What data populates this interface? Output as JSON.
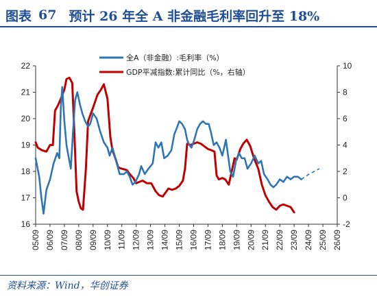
{
  "header": {
    "label": "图表",
    "number": "67",
    "text": "预计 26 年全 A 非金融毛利率回升至 18%"
  },
  "source": "资料来源：Wind，华创证券",
  "chart_data": {
    "type": "line",
    "title": "",
    "xlabel": "",
    "ylabel": "",
    "x_ticks": [
      "05/09",
      "06/09",
      "07/09",
      "08/09",
      "09/09",
      "10/09",
      "11/09",
      "12/09",
      "13/09",
      "14/09",
      "15/09",
      "16/09",
      "17/09",
      "18/09",
      "19/09",
      "20/09",
      "21/09",
      "22/09",
      "23/09",
      "24/09",
      "25/09",
      "26/09"
    ],
    "y_left": {
      "min": 16,
      "max": 22,
      "ticks": [
        "16",
        "17",
        "18",
        "19",
        "20",
        "21",
        "22"
      ]
    },
    "y_right": {
      "min": -2,
      "max": 10,
      "ticks": [
        "-2",
        "0",
        "2",
        "4",
        "6",
        "8",
        "10"
      ]
    },
    "legend_position": "top",
    "grid": false,
    "series": [
      {
        "name": "全A（非金融）:毛利率（%）",
        "axis": "left",
        "color": "#2e75b6",
        "points": [
          [
            2005.75,
            18.5
          ],
          [
            2006.0,
            17.8
          ],
          [
            2006.15,
            17.0
          ],
          [
            2006.3,
            16.4
          ],
          [
            2006.5,
            17.3
          ],
          [
            2006.75,
            17.7
          ],
          [
            2007.0,
            18.3
          ],
          [
            2007.25,
            18.7
          ],
          [
            2007.4,
            18.5
          ],
          [
            2007.5,
            20.4
          ],
          [
            2007.6,
            21.2
          ],
          [
            2007.75,
            19.9
          ],
          [
            2007.9,
            19.0
          ],
          [
            2008.0,
            18.7
          ],
          [
            2008.2,
            18.1
          ],
          [
            2008.35,
            19.5
          ],
          [
            2008.5,
            20.7
          ],
          [
            2008.65,
            21.0
          ],
          [
            2008.85,
            20.5
          ],
          [
            2009.0,
            20.2
          ],
          [
            2009.2,
            19.9
          ],
          [
            2009.4,
            19.7
          ],
          [
            2009.55,
            19.8
          ],
          [
            2009.75,
            20.2
          ],
          [
            2010.0,
            20.0
          ],
          [
            2010.25,
            19.5
          ],
          [
            2010.5,
            19.1
          ],
          [
            2010.75,
            18.9
          ],
          [
            2010.9,
            18.6
          ],
          [
            2011.1,
            18.9
          ],
          [
            2011.3,
            18.5
          ],
          [
            2011.6,
            17.9
          ],
          [
            2011.9,
            17.9
          ],
          [
            2012.1,
            18.0
          ],
          [
            2012.3,
            17.8
          ],
          [
            2012.5,
            17.5
          ],
          [
            2012.7,
            17.6
          ],
          [
            2012.95,
            17.9
          ],
          [
            2013.1,
            18.2
          ],
          [
            2013.35,
            17.9
          ],
          [
            2013.6,
            18.1
          ],
          [
            2013.9,
            18.3
          ],
          [
            2014.1,
            19.1
          ],
          [
            2014.3,
            18.9
          ],
          [
            2014.5,
            19.1
          ],
          [
            2014.7,
            18.5
          ],
          [
            2014.95,
            18.6
          ],
          [
            2015.2,
            18.8
          ],
          [
            2015.4,
            19.4
          ],
          [
            2015.55,
            19.6
          ],
          [
            2015.75,
            19.9
          ],
          [
            2015.95,
            19.8
          ],
          [
            2016.15,
            19.6
          ],
          [
            2016.3,
            19.2
          ],
          [
            2016.45,
            19.0
          ],
          [
            2016.6,
            18.9
          ],
          [
            2016.8,
            19.2
          ],
          [
            2017.0,
            19.6
          ],
          [
            2017.2,
            19.8
          ],
          [
            2017.4,
            19.9
          ],
          [
            2017.6,
            19.8
          ],
          [
            2017.8,
            19.8
          ],
          [
            2017.95,
            19.5
          ],
          [
            2018.15,
            19.0
          ],
          [
            2018.35,
            19.1
          ],
          [
            2018.55,
            18.9
          ],
          [
            2018.75,
            18.6
          ],
          [
            2019.0,
            19.2
          ],
          [
            2019.3,
            18.0
          ],
          [
            2019.5,
            17.8
          ],
          [
            2019.7,
            18.4
          ],
          [
            2019.9,
            18.7
          ],
          [
            2020.1,
            18.5
          ],
          [
            2020.3,
            18.5
          ],
          [
            2020.5,
            18.1
          ],
          [
            2020.75,
            18.3
          ],
          [
            2021.0,
            18.6
          ],
          [
            2021.25,
            18.3
          ],
          [
            2021.45,
            18.4
          ],
          [
            2021.65,
            17.9
          ],
          [
            2021.9,
            17.7
          ],
          [
            2022.1,
            17.5
          ],
          [
            2022.3,
            17.4
          ],
          [
            2022.5,
            17.5
          ],
          [
            2022.75,
            17.7
          ],
          [
            2023.0,
            17.6
          ],
          [
            2023.25,
            17.8
          ],
          [
            2023.5,
            17.7
          ],
          [
            2023.75,
            17.8
          ],
          [
            2024.0,
            17.8
          ],
          [
            2024.25,
            17.7
          ]
        ]
      },
      {
        "name": "GDP平减指数:累计同比（%，右轴）",
        "axis": "right",
        "color": "#c00000",
        "points": [
          [
            2005.75,
            4.2
          ],
          [
            2005.9,
            3.8
          ],
          [
            2006.2,
            3.6
          ],
          [
            2006.5,
            3.5
          ],
          [
            2006.75,
            4.0
          ],
          [
            2006.95,
            4.0
          ],
          [
            2007.1,
            6.6
          ],
          [
            2007.3,
            7.0
          ],
          [
            2007.5,
            7.5
          ],
          [
            2007.75,
            8.2
          ],
          [
            2007.9,
            9.0
          ],
          [
            2008.1,
            9.1
          ],
          [
            2008.3,
            8.7
          ],
          [
            2008.45,
            4.8
          ],
          [
            2008.6,
            0.5
          ],
          [
            2008.75,
            -0.3
          ],
          [
            2008.9,
            -0.8
          ],
          [
            2009.05,
            -0.9
          ],
          [
            2009.25,
            2.2
          ],
          [
            2009.4,
            5.8
          ],
          [
            2009.6,
            6.4
          ],
          [
            2009.8,
            7.0
          ],
          [
            2010.05,
            7.8
          ],
          [
            2010.3,
            8.2
          ],
          [
            2010.5,
            8.6
          ],
          [
            2010.75,
            7.5
          ],
          [
            2010.95,
            4.6
          ],
          [
            2011.1,
            3.6
          ],
          [
            2011.3,
            3.0
          ],
          [
            2011.5,
            2.3
          ],
          [
            2011.75,
            2.2
          ],
          [
            2012.1,
            2.1
          ],
          [
            2012.3,
            1.8
          ],
          [
            2012.55,
            1.5
          ],
          [
            2012.75,
            1.1
          ],
          [
            2012.95,
            1.2
          ],
          [
            2013.2,
            1.3
          ],
          [
            2013.5,
            1.1
          ],
          [
            2013.8,
            1.1
          ],
          [
            2014.1,
            0.5
          ],
          [
            2014.35,
            0.2
          ],
          [
            2014.6,
            0.1
          ],
          [
            2014.8,
            0.4
          ],
          [
            2015.0,
            0.7
          ],
          [
            2015.25,
            0.6
          ],
          [
            2015.5,
            0.7
          ],
          [
            2015.75,
            0.9
          ],
          [
            2016.0,
            1.3
          ],
          [
            2016.15,
            2.2
          ],
          [
            2016.3,
            4.1
          ],
          [
            2016.5,
            4.0
          ],
          [
            2016.75,
            4.1
          ],
          [
            2017.0,
            4.2
          ],
          [
            2017.25,
            4.1
          ],
          [
            2017.5,
            3.9
          ],
          [
            2017.75,
            3.7
          ],
          [
            2018.0,
            3.6
          ],
          [
            2018.2,
            3.5
          ],
          [
            2018.35,
            1.7
          ],
          [
            2018.5,
            1.4
          ],
          [
            2018.75,
            1.5
          ],
          [
            2018.95,
            1.4
          ],
          [
            2019.2,
            1.0
          ],
          [
            2019.4,
            2.0
          ],
          [
            2019.6,
            3.0
          ],
          [
            2019.75,
            2.9
          ],
          [
            2020.0,
            3.7
          ],
          [
            2020.2,
            4.1
          ],
          [
            2020.45,
            4.4
          ],
          [
            2020.7,
            3.9
          ],
          [
            2020.95,
            3.0
          ],
          [
            2021.25,
            2.2
          ],
          [
            2021.5,
            1.0
          ],
          [
            2021.75,
            0.2
          ],
          [
            2022.0,
            -0.3
          ],
          [
            2022.25,
            -0.7
          ],
          [
            2022.5,
            -0.9
          ],
          [
            2022.75,
            -0.6
          ],
          [
            2023.0,
            -0.5
          ],
          [
            2023.25,
            -0.6
          ],
          [
            2023.5,
            -0.7
          ],
          [
            2023.75,
            -1.1
          ]
        ]
      }
    ],
    "forecast": {
      "series": "全A（非金融）:毛利率（%）",
      "style": "dashed",
      "points": [
        [
          2024.25,
          17.7
        ],
        [
          2024.8,
          17.9
        ],
        [
          2025.5,
          18.1
        ]
      ]
    }
  }
}
